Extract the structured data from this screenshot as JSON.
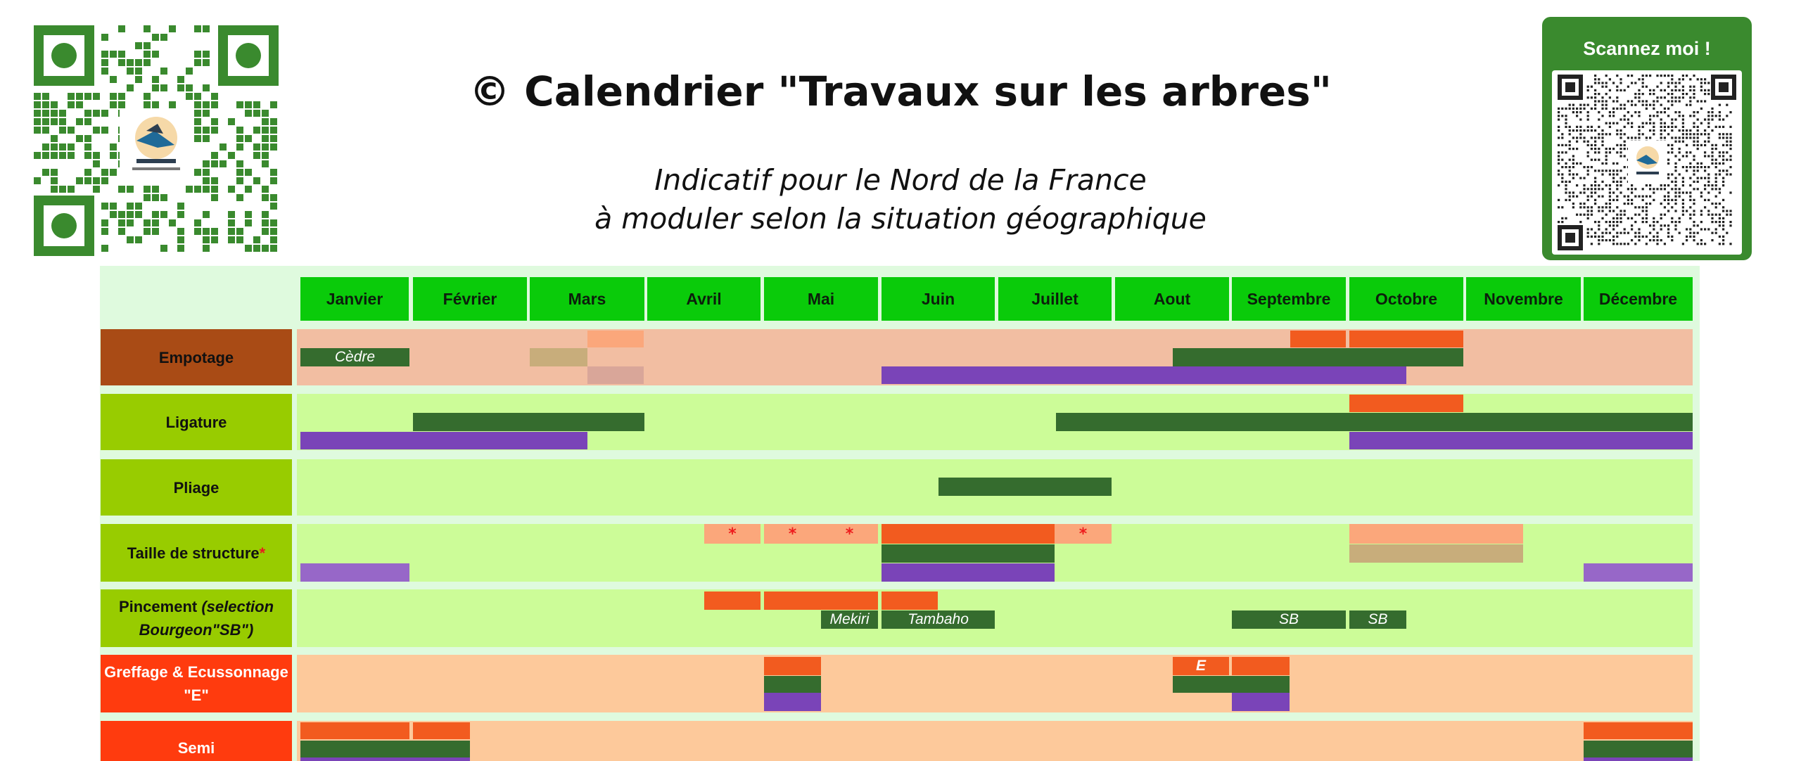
{
  "header": {
    "title": "© Calendrier \"Travaux sur les arbres\"",
    "subtitle_line1": "Indicatif pour le Nord de la France",
    "subtitle_line2": "à moduler selon la situation géographique"
  },
  "qr_badge": {
    "label": "Scannez moi !"
  },
  "months": [
    "Janvier",
    "Février",
    "Mars",
    "Avril",
    "Mai",
    "Juin",
    "Juillet",
    "Aout",
    "Septembre",
    "Octobre",
    "Novembre",
    "Décembre"
  ],
  "rows": [
    {
      "label": "Empotage"
    },
    {
      "label": "Ligature"
    },
    {
      "label": "Pliage"
    },
    {
      "label_main": "Taille de structure ",
      "label_star": "*"
    },
    {
      "label_line1_bold": "Pincement ",
      "label_line1_italic": "(selection",
      "label_line2": "Bourgeon\"SB\")"
    },
    {
      "label_line1": "Greffage & Ecussonnage",
      "label_line2": "\"E\""
    },
    {
      "label": "Semi"
    }
  ],
  "bar_labels": {
    "cedre": "Cèdre",
    "mekiri": "Mekiri",
    "tambaho": "Tambaho",
    "sb": "SB",
    "e": "E",
    "star": "*"
  },
  "colors": {
    "month_header": "#0acb0a",
    "dark_green": "#356c2e",
    "purple": "#7a44b8",
    "light_purple": "#9767c8",
    "orange": "#f25b1f",
    "light_orange": "#fba77b",
    "tan": "#c8ad7b",
    "dusty_pink": "#d9a699",
    "empotage_label_bg": "#a94b15",
    "empotage_band": "#f2bea2",
    "green_label_bg": "#98cc00",
    "green_band": "#ccfc98",
    "red_label_bg": "#ff3b0e",
    "peach_band": "#fdc99b",
    "table_bg": "#dffade"
  }
}
